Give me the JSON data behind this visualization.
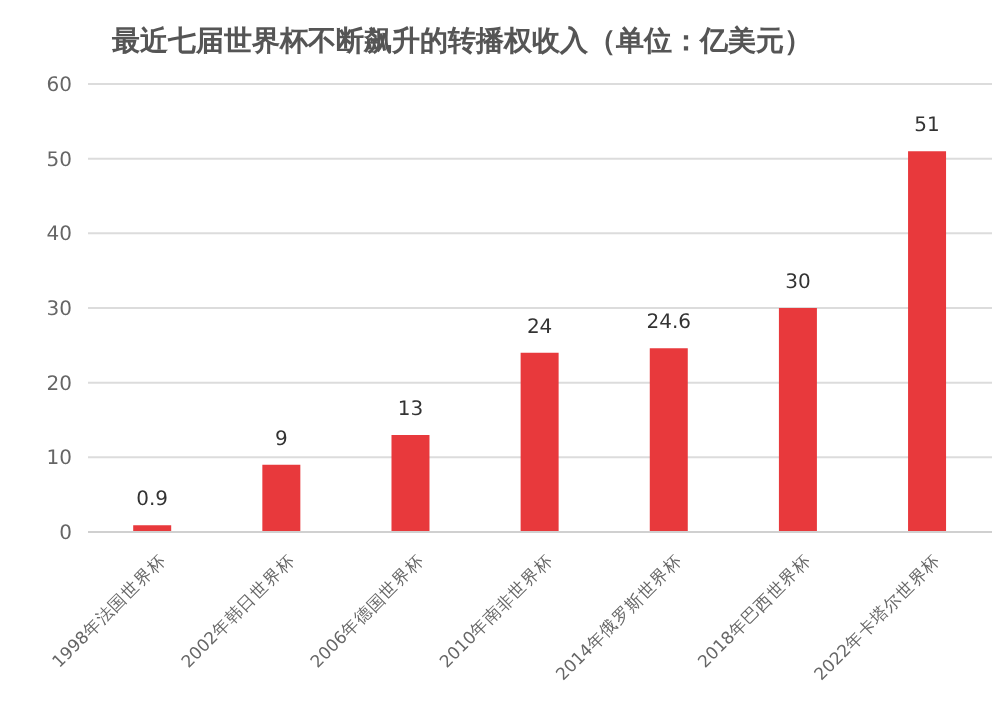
{
  "chart_data": {
    "type": "bar",
    "title": "最近七届世界杯不断飙升的转播权收入（单位：亿美元）",
    "categories": [
      "1998年法国世界杯",
      "2002年韩日世界杯",
      "2006年德国世界杯",
      "2010年南非世界杯",
      "2014年俄罗斯世界杯",
      "2018年巴西世界杯",
      "2022年卡塔尔世界杯"
    ],
    "values": [
      0.9,
      9,
      13,
      24,
      24.6,
      30,
      51
    ],
    "color": "#e8393c",
    "ylim": [
      0,
      60
    ],
    "yticks": [
      0,
      10,
      20,
      30,
      40,
      50,
      60
    ],
    "grid": "y",
    "data_labels": true
  }
}
